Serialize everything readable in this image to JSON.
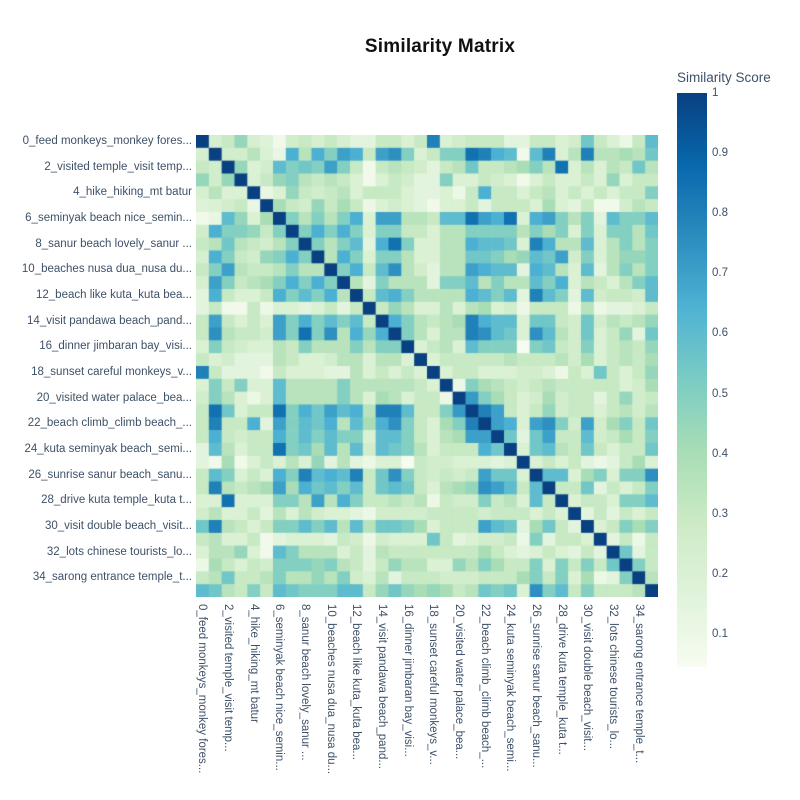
{
  "chart_data": {
    "type": "heatmap",
    "title": "Similarity Matrix",
    "size": 36,
    "x_tick_labels": [
      "0_feed monkeys_monkey fores...",
      "2_visited temple_visit temp...",
      "4_hike_hiking_mt batur",
      "6_seminyak beach nice_semin...",
      "8_sanur beach lovely_sanur ...",
      "10_beaches nusa dua_nusa du...",
      "12_beach like kuta_kuta bea...",
      "14_visit pandawa beach_pand...",
      "16_dinner jimbaran bay_visi...",
      "18_sunset careful monkeys_v...",
      "20_visited water palace_bea...",
      "22_beach climb_climb beach_...",
      "24_kuta seminyak beach_semi...",
      "26_sunrise sanur beach_sanu...",
      "28_drive kuta temple_kuta t...",
      "30_visit double beach_visit...",
      "32_lots chinese tourists_lo...",
      "34_sarong entrance temple_t..."
    ],
    "y_tick_labels": [
      "0_feed monkeys_monkey fores...",
      "2_visited temple_visit temp...",
      "4_hike_hiking_mt batur",
      "6_seminyak beach nice_semin...",
      "8_sanur beach lovely_sanur ...",
      "10_beaches nusa dua_nusa du...",
      "12_beach like kuta_kuta bea...",
      "14_visit pandawa beach_pand...",
      "16_dinner jimbaran bay_visi...",
      "18_sunset careful monkeys_v...",
      "20_visited water palace_bea...",
      "22_beach climb_climb beach_...",
      "24_kuta seminyak beach_semi...",
      "26_sunrise sanur beach_sanu...",
      "28_drive kuta temple_kuta t...",
      "30_visit double beach_visit...",
      "32_lots chinese tourists_lo...",
      "34_sarong entrance temple_t..."
    ],
    "colorbar": {
      "title": "Similarity Score",
      "tick_labels": [
        "1",
        "0.9",
        "0.8",
        "0.7",
        "0.6",
        "0.5",
        "0.4",
        "0.3",
        "0.2",
        "0.1"
      ],
      "tick_values": [
        1,
        0.9,
        0.8,
        0.7,
        0.6,
        0.5,
        0.4,
        0.3,
        0.2,
        0.1
      ]
    },
    "zmin": 0.045,
    "zmax": 1.0,
    "symmetric": true,
    "matrix_upper_triangle": [
      [
        1,
        0.22,
        0.3,
        0.45,
        0.22,
        0.18,
        0.08,
        0.25,
        0.3,
        0.22,
        0.3,
        0.22,
        0.15,
        0.15,
        0.3,
        0.3,
        0.2,
        0.3,
        0.8,
        0.2,
        0.25,
        0.3,
        0.3,
        0.3,
        0.15,
        0.15,
        0.3,
        0.3,
        0.2,
        0.25,
        0.55,
        0.3,
        0.2,
        0.1,
        0.3,
        0.6
      ],
      [
        1,
        0.25,
        0.25,
        0.35,
        0.2,
        0.12,
        0.65,
        0.35,
        0.65,
        0.5,
        0.7,
        0.65,
        0.3,
        0.7,
        0.75,
        0.5,
        0.2,
        0.3,
        0.5,
        0.5,
        0.85,
        0.8,
        0.65,
        0.6,
        0.08,
        0.6,
        0.8,
        0.2,
        0.35,
        0.8,
        0.35,
        0.35,
        0.4,
        0.35,
        0.55
      ],
      [
        1,
        0.45,
        0.2,
        0.25,
        0.6,
        0.5,
        0.55,
        0.5,
        0.7,
        0.5,
        0.3,
        0.08,
        0.3,
        0.35,
        0.3,
        0.25,
        0.15,
        0.3,
        0.35,
        0.55,
        0.3,
        0.3,
        0.35,
        0.4,
        0.5,
        0.35,
        0.85,
        0.2,
        0.35,
        0.2,
        0.35,
        0.3,
        0.55,
        0.35
      ],
      [
        1,
        0.2,
        0.3,
        0.45,
        0.5,
        0.35,
        0.3,
        0.35,
        0.3,
        0.2,
        0.08,
        0.2,
        0.3,
        0.25,
        0.15,
        0.15,
        0.5,
        0.2,
        0.2,
        0.3,
        0.25,
        0.2,
        0.08,
        0.2,
        0.3,
        0.2,
        0.2,
        0.3,
        0.2,
        0.45,
        0.2,
        0.3,
        0.3
      ],
      [
        1,
        0.12,
        0.2,
        0.45,
        0.3,
        0.25,
        0.3,
        0.35,
        0.2,
        0.3,
        0.3,
        0.3,
        0.2,
        0.15,
        0.15,
        0.2,
        0.1,
        0.3,
        0.65,
        0.3,
        0.3,
        0.2,
        0.3,
        0.35,
        0.2,
        0.3,
        0.2,
        0.3,
        0.2,
        0.3,
        0.3,
        0.5
      ],
      [
        1,
        0.4,
        0.3,
        0.25,
        0.45,
        0.3,
        0.4,
        0.3,
        0.1,
        0.2,
        0.25,
        0.2,
        0.15,
        0.08,
        0.2,
        0.2,
        0.3,
        0.15,
        0.3,
        0.3,
        0.3,
        0.2,
        0.4,
        0.2,
        0.15,
        0.3,
        0.08,
        0.08,
        0.25,
        0.35,
        0.3
      ],
      [
        1,
        0.5,
        0.35,
        0.5,
        0.35,
        0.5,
        0.65,
        0.2,
        0.7,
        0.7,
        0.35,
        0.35,
        0.3,
        0.6,
        0.6,
        0.85,
        0.7,
        0.65,
        0.85,
        0.2,
        0.65,
        0.7,
        0.5,
        0.35,
        0.5,
        0.15,
        0.6,
        0.5,
        0.5,
        0.6
      ],
      [
        1,
        0.5,
        0.65,
        0.5,
        0.65,
        0.5,
        0.2,
        0.5,
        0.5,
        0.3,
        0.3,
        0.2,
        0.35,
        0.35,
        0.5,
        0.5,
        0.5,
        0.5,
        0.35,
        0.5,
        0.4,
        0.5,
        0.2,
        0.5,
        0.2,
        0.5,
        0.5,
        0.35,
        0.55
      ],
      [
        1,
        0.5,
        0.35,
        0.5,
        0.6,
        0.15,
        0.65,
        0.85,
        0.5,
        0.2,
        0.2,
        0.35,
        0.35,
        0.65,
        0.6,
        0.6,
        0.55,
        0.2,
        0.8,
        0.65,
        0.35,
        0.35,
        0.6,
        0.2,
        0.35,
        0.5,
        0.35,
        0.5
      ],
      [
        1,
        0.35,
        0.65,
        0.5,
        0.2,
        0.5,
        0.5,
        0.35,
        0.2,
        0.2,
        0.35,
        0.35,
        0.55,
        0.55,
        0.5,
        0.4,
        0.45,
        0.6,
        0.55,
        0.7,
        0.25,
        0.5,
        0.2,
        0.35,
        0.45,
        0.45,
        0.5
      ],
      [
        1,
        0.5,
        0.65,
        0.3,
        0.6,
        0.75,
        0.35,
        0.25,
        0.15,
        0.35,
        0.35,
        0.7,
        0.65,
        0.6,
        0.6,
        0.15,
        0.65,
        0.6,
        0.35,
        0.2,
        0.6,
        0.15,
        0.35,
        0.5,
        0.35,
        0.5
      ],
      [
        1,
        0.35,
        0.15,
        0.5,
        0.35,
        0.35,
        0.35,
        0.15,
        0.5,
        0.5,
        0.6,
        0.35,
        0.5,
        0.35,
        0.35,
        0.6,
        0.5,
        0.65,
        0.2,
        0.35,
        0.3,
        0.2,
        0.35,
        0.5,
        0.6
      ],
      [
        1,
        0.3,
        0.6,
        0.65,
        0.5,
        0.35,
        0.35,
        0.35,
        0.35,
        0.65,
        0.6,
        0.5,
        0.6,
        0.15,
        0.8,
        0.6,
        0.5,
        0.15,
        0.6,
        0.25,
        0.3,
        0.3,
        0.25,
        0.6
      ],
      [
        1,
        0.3,
        0.45,
        0.35,
        0.2,
        0.2,
        0.35,
        0.2,
        0.35,
        0.4,
        0.2,
        0.25,
        0.1,
        0.3,
        0.3,
        0.3,
        0.1,
        0.35,
        0.1,
        0.15,
        0.15,
        0.2,
        0.3
      ],
      [
        1,
        0.65,
        0.5,
        0.35,
        0.3,
        0.35,
        0.4,
        0.8,
        0.65,
        0.6,
        0.6,
        0.2,
        0.55,
        0.55,
        0.3,
        0.25,
        0.55,
        0.25,
        0.35,
        0.3,
        0.35,
        0.45
      ],
      [
        1,
        0.5,
        0.35,
        0.2,
        0.35,
        0.35,
        0.8,
        0.75,
        0.6,
        0.55,
        0.2,
        0.75,
        0.6,
        0.35,
        0.25,
        0.55,
        0.2,
        0.3,
        0.45,
        0.15,
        0.55
      ],
      [
        1,
        0.2,
        0.3,
        0.35,
        0.2,
        0.6,
        0.5,
        0.5,
        0.5,
        0.05,
        0.5,
        0.55,
        0.3,
        0.25,
        0.5,
        0.2,
        0.3,
        0.35,
        0.3,
        0.45
      ],
      [
        1,
        0.2,
        0.3,
        0.3,
        0.3,
        0.3,
        0.3,
        0.35,
        0.3,
        0.3,
        0.3,
        0.35,
        0.25,
        0.4,
        0.2,
        0.3,
        0.35,
        0.3,
        0.4
      ],
      [
        1,
        0.2,
        0.3,
        0.3,
        0.2,
        0.2,
        0.2,
        0.25,
        0.25,
        0.2,
        0.1,
        0.3,
        0.2,
        0.55,
        0.3,
        0.2,
        0.3,
        0.45
      ],
      [
        1,
        0.1,
        0.5,
        0.4,
        0.35,
        0.3,
        0.25,
        0.3,
        0.35,
        0.3,
        0.3,
        0.3,
        0.3,
        0.3,
        0.2,
        0.25,
        0.4
      ],
      [
        1,
        0.72,
        0.5,
        0.4,
        0.3,
        0.2,
        0.25,
        0.4,
        0.25,
        0.3,
        0.3,
        0.15,
        0.3,
        0.45,
        0.25,
        0.3
      ],
      [
        1,
        0.8,
        0.7,
        0.3,
        0.2,
        0.3,
        0.45,
        0.25,
        0.3,
        0.3,
        0.2,
        0.3,
        0.35,
        0.25,
        0.35
      ],
      [
        1,
        0.7,
        0.65,
        0.2,
        0.7,
        0.75,
        0.5,
        0.25,
        0.7,
        0.25,
        0.4,
        0.5,
        0.3,
        0.55
      ],
      [
        1,
        0.55,
        0.15,
        0.55,
        0.7,
        0.3,
        0.3,
        0.6,
        0.25,
        0.3,
        0.4,
        0.3,
        0.5
      ],
      [
        1,
        0.2,
        0.55,
        0.6,
        0.35,
        0.3,
        0.55,
        0.3,
        0.2,
        0.3,
        0.3,
        0.55
      ],
      [
        1,
        0.2,
        0.3,
        0.2,
        0.3,
        0.15,
        0.1,
        0.15,
        0.3,
        0.4,
        0.2
      ],
      [
        1,
        0.6,
        0.6,
        0.2,
        0.4,
        0.5,
        0.2,
        0.5,
        0.5,
        0.75
      ],
      [
        1,
        0.3,
        0.3,
        0.55,
        0.15,
        0.3,
        0.2,
        0.3,
        0.5
      ],
      [
        1,
        0.2,
        0.3,
        0.3,
        0.2,
        0.5,
        0.5,
        0.6
      ],
      [
        1,
        0.15,
        0.3,
        0.15,
        0.3,
        0.2,
        0.3
      ],
      [
        1,
        0.2,
        0.3,
        0.5,
        0.4,
        0.5
      ],
      [
        1,
        0.15,
        0.3,
        0.1,
        0.3
      ],
      [
        1,
        0.55,
        0.15,
        0.3
      ],
      [
        1,
        0.5,
        0.3
      ],
      [
        1,
        0.35
      ],
      [
        1
      ]
    ],
    "colorscale": [
      "#f7fcf0",
      "#e0f3db",
      "#ccebc5",
      "#a8ddb5",
      "#7bccc4",
      "#4eb3d3",
      "#2b8cbe",
      "#0868ac",
      "#084081"
    ],
    "colors": {
      "tick_text": "#3e5168",
      "title_text": "#111111",
      "background": "#ffffff"
    }
  }
}
